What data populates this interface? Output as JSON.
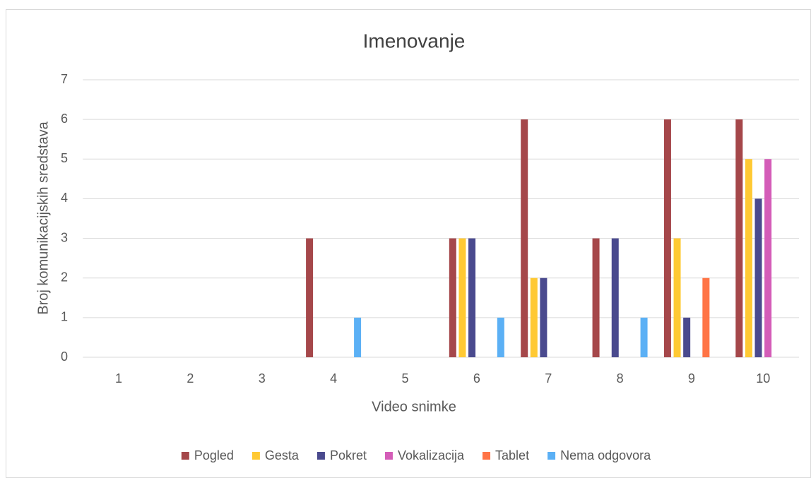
{
  "chart_data": {
    "type": "bar",
    "title": "Imenovanje",
    "x_label": "Video snimke",
    "y_label": "Broj komunikacijskih sredstava",
    "categories": [
      "1",
      "2",
      "3",
      "4",
      "5",
      "6",
      "7",
      "8",
      "9",
      "10"
    ],
    "series": [
      {
        "name": "Pogled",
        "color": "#a5474a",
        "values": [
          0,
          0,
          0,
          3,
          0,
          3,
          6,
          3,
          6,
          6
        ]
      },
      {
        "name": "Gesta",
        "color": "#ffc933",
        "values": [
          0,
          0,
          0,
          0,
          0,
          3,
          2,
          0,
          3,
          5
        ]
      },
      {
        "name": "Pokret",
        "color": "#4a4a8e",
        "values": [
          0,
          0,
          0,
          0,
          0,
          3,
          2,
          3,
          1,
          4
        ]
      },
      {
        "name": "Vokalizacija",
        "color": "#d45db8",
        "values": [
          0,
          0,
          0,
          0,
          0,
          0,
          0,
          0,
          0,
          5
        ]
      },
      {
        "name": "Tablet",
        "color": "#ff7446",
        "values": [
          0,
          0,
          0,
          0,
          0,
          0,
          0,
          0,
          2,
          0
        ]
      },
      {
        "name": "Nema odgovora",
        "color": "#5bb0f5",
        "values": [
          0,
          0,
          0,
          1,
          0,
          1,
          0,
          1,
          0,
          0
        ]
      }
    ],
    "ylim": [
      0,
      7
    ],
    "yticks": [
      0,
      1,
      2,
      3,
      4,
      5,
      6,
      7
    ],
    "grid": true,
    "legend": "bottom"
  }
}
